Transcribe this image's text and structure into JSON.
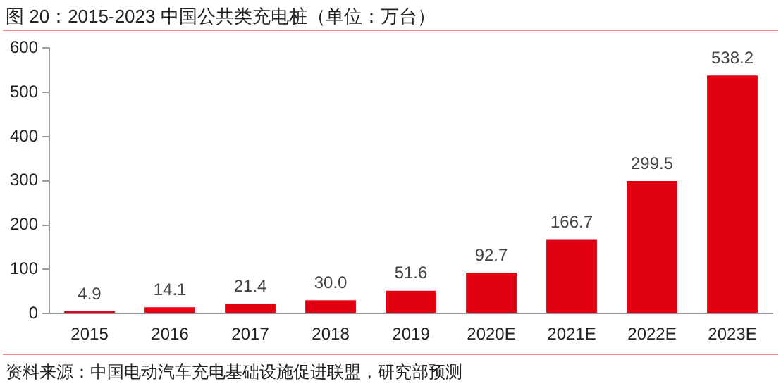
{
  "chart_data": {
    "type": "bar",
    "title": "图 20：2015-2023 中国公共类充电桩（单位：万台）",
    "annotations": [
      "资料来源：中国电动汽车充电基础设施促进联盟，研究部预测"
    ],
    "categories": [
      "2015",
      "2016",
      "2017",
      "2018",
      "2019",
      "2020E",
      "2021E",
      "2022E",
      "2023E"
    ],
    "values": [
      4.9,
      14.1,
      21.4,
      30.0,
      51.6,
      92.7,
      166.7,
      299.5,
      538.2
    ],
    "value_labels": [
      "4.9",
      "14.1",
      "21.4",
      "30.0",
      "51.6",
      "92.7",
      "166.7",
      "299.5",
      "538.2"
    ],
    "color": "#e00012",
    "ylim": [
      0,
      600
    ],
    "yticks": [
      0,
      100,
      200,
      300,
      400,
      500,
      600
    ],
    "grid": false,
    "legend": false
  }
}
